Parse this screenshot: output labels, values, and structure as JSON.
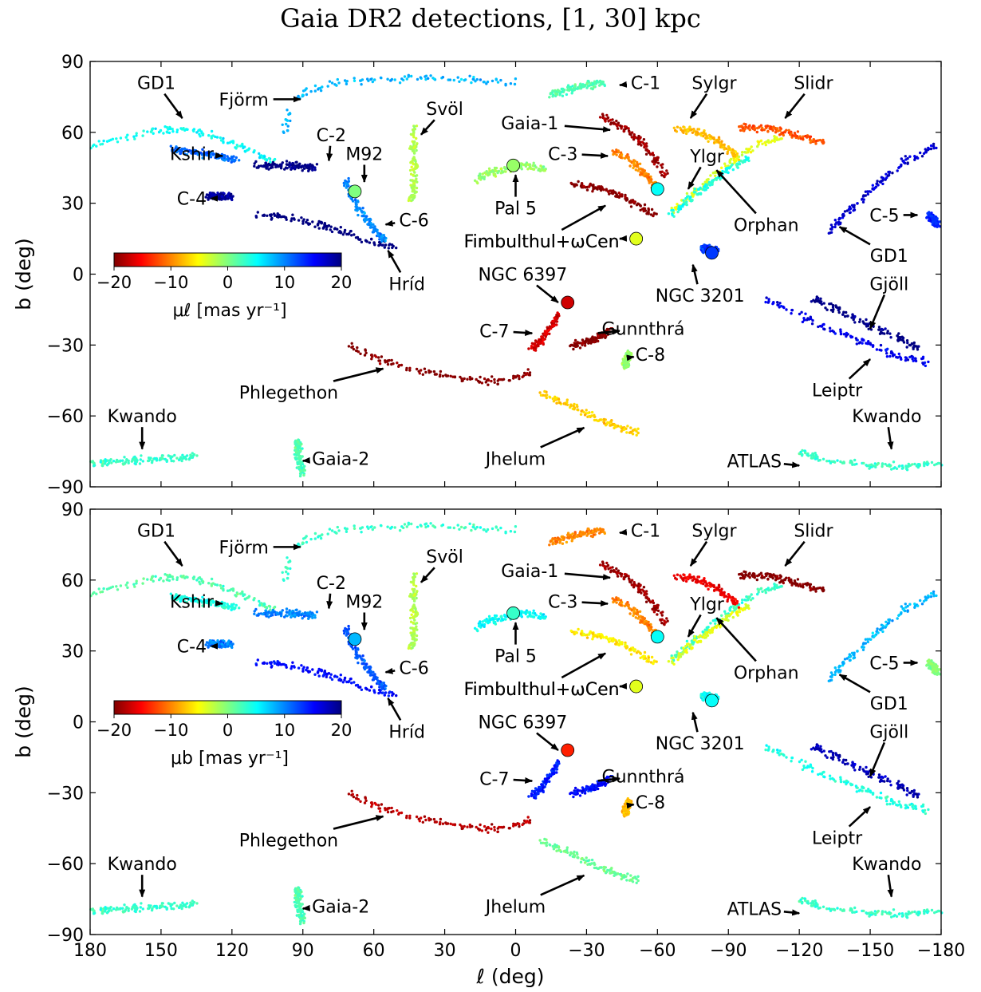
{
  "chart_data": {
    "type": "scatter",
    "title": "Gaia DR2 detections, [1, 30] kpc",
    "xlabel": "ℓ (deg)",
    "ylabel": "b (deg)",
    "xlim": [
      180,
      -180
    ],
    "ylim": [
      -90,
      90
    ],
    "xticks": [
      "180",
      "150",
      "120",
      "90",
      "60",
      "30",
      "0",
      "−30",
      "−60",
      "−90",
      "−120",
      "−150",
      "−180"
    ],
    "yticks": [
      "−90",
      "−60",
      "−30",
      "0",
      "30",
      "60",
      "90"
    ],
    "colormap": [
      "#800000",
      "#ff0000",
      "#ffff00",
      "#00ffff",
      "#0000ff",
      "#000080"
    ],
    "panels": [
      {
        "colorbar_label": "μℓ  [mas yr⁻¹]",
        "colorbar_range": [
          -20,
          20
        ],
        "colorbar_ticks": [
          "−20",
          "−10",
          "0",
          "10",
          "20"
        ]
      },
      {
        "colorbar_label": "μb  [mas yr⁻¹]",
        "colorbar_range": [
          -20,
          20
        ],
        "colorbar_ticks": [
          "−20",
          "−10",
          "0",
          "10",
          "20"
        ]
      }
    ],
    "streams": [
      {
        "name": "GD1 (east)",
        "pts": [
          [
            180,
            54
          ],
          [
            165,
            58
          ],
          [
            150,
            61
          ],
          [
            140,
            61
          ],
          [
            130,
            59
          ],
          [
            120,
            55
          ],
          [
            110,
            51
          ],
          [
            100,
            47
          ]
        ],
        "color": [
          5,
          2
        ]
      },
      {
        "name": "GD1 (west)",
        "pts": [
          [
            -180,
            55
          ],
          [
            -165,
            48
          ],
          [
            -155,
            40
          ],
          [
            -148,
            33
          ],
          [
            -140,
            26
          ],
          [
            -133,
            18
          ]
        ],
        "color": [
          17,
          8
        ]
      },
      {
        "name": "Fjörm",
        "pts": [
          [
            98,
            60
          ],
          [
            95,
            72
          ],
          [
            88,
            78
          ],
          [
            75,
            81
          ],
          [
            60,
            82
          ],
          [
            45,
            83
          ],
          [
            30,
            83
          ],
          [
            15,
            82
          ],
          [
            0,
            81
          ]
        ],
        "color": [
          8,
          3
        ]
      },
      {
        "name": "Kshir",
        "pts": [
          [
            145,
            53
          ],
          [
            130,
            51
          ],
          [
            118,
            48
          ]
        ],
        "color": [
          11,
          4
        ]
      },
      {
        "name": "C-4",
        "pts": [
          [
            130,
            33
          ],
          [
            120,
            33
          ]
        ],
        "color": [
          19,
          10
        ]
      },
      {
        "name": "C-2",
        "pts": [
          [
            110,
            46
          ],
          [
            95,
            46
          ],
          [
            85,
            45
          ]
        ],
        "color": [
          20,
          10
        ]
      },
      {
        "name": "Hríd",
        "pts": [
          [
            110,
            25
          ],
          [
            95,
            24
          ],
          [
            80,
            20
          ],
          [
            65,
            15
          ],
          [
            50,
            11
          ]
        ],
        "color": [
          21,
          15
        ]
      },
      {
        "name": "C-6",
        "pts": [
          [
            72,
            40
          ],
          [
            68,
            30
          ],
          [
            62,
            22
          ],
          [
            56,
            14
          ]
        ],
        "color": [
          10,
          12
        ]
      },
      {
        "name": "Svöl",
        "pts": [
          [
            43,
            63
          ],
          [
            43,
            50
          ],
          [
            43,
            38
          ],
          [
            44,
            31
          ]
        ],
        "color": [
          -2,
          -2
        ]
      },
      {
        "name": "Pal 5",
        "pts": [
          [
            17,
            40
          ],
          [
            10,
            43
          ],
          [
            2,
            45
          ],
          [
            -5,
            46
          ],
          [
            -13,
            44
          ]
        ],
        "color": [
          -1,
          5
        ]
      },
      {
        "name": "C-1",
        "pts": [
          [
            -15,
            76
          ],
          [
            -25,
            79
          ],
          [
            -38,
            81
          ]
        ],
        "color": [
          2,
          -10
        ]
      },
      {
        "name": "Gaia-1",
        "pts": [
          [
            -36,
            67
          ],
          [
            -45,
            62
          ],
          [
            -52,
            57
          ],
          [
            -58,
            50
          ],
          [
            -63,
            42
          ]
        ],
        "color": [
          -19,
          -19
        ]
      },
      {
        "name": "C-3",
        "pts": [
          [
            -42,
            52
          ],
          [
            -50,
            47
          ],
          [
            -56,
            41
          ],
          [
            -61,
            35
          ]
        ],
        "color": [
          -10,
          -10
        ]
      },
      {
        "name": "Fimbulthul",
        "pts": [
          [
            -24,
            38
          ],
          [
            -32,
            37
          ],
          [
            -38,
            36
          ],
          [
            -45,
            33
          ],
          [
            -52,
            29
          ],
          [
            -59,
            25
          ]
        ],
        "color": [
          -20,
          -6
        ]
      },
      {
        "name": "Orphan",
        "pts": [
          [
            -66,
            26
          ],
          [
            -74,
            33
          ],
          [
            -82,
            40
          ],
          [
            -92,
            48
          ],
          [
            -102,
            55
          ],
          [
            -112,
            58
          ]
        ],
        "color": [
          -4,
          3
        ]
      },
      {
        "name": "Ylgr",
        "pts": [
          [
            -66,
            25
          ],
          [
            -74,
            32
          ],
          [
            -82,
            38
          ],
          [
            -90,
            44
          ],
          [
            -98,
            49
          ]
        ],
        "color": [
          4,
          -4
        ]
      },
      {
        "name": "Sylgr",
        "pts": [
          [
            -68,
            62
          ],
          [
            -78,
            60
          ],
          [
            -86,
            56
          ],
          [
            -94,
            50
          ]
        ],
        "color": [
          -8,
          -16
        ]
      },
      {
        "name": "Slidr",
        "pts": [
          [
            -95,
            62
          ],
          [
            -107,
            62
          ],
          [
            -118,
            59
          ],
          [
            -130,
            56
          ]
        ],
        "color": [
          -12,
          -20
        ]
      },
      {
        "name": "C-5",
        "pts": [
          [
            -175,
            25
          ],
          [
            -178,
            21
          ]
        ],
        "color": [
          14,
          0
        ]
      },
      {
        "name": "NGC 3201",
        "pts": [
          [
            -79,
            11
          ],
          [
            -85,
            10
          ]
        ],
        "color": [
          13,
          5
        ]
      },
      {
        "name": "NGC 6397",
        "pts": [
          [
            -18,
            -17
          ],
          [
            -15,
            -22
          ],
          [
            -11,
            -28
          ],
          [
            -7,
            -31
          ]
        ],
        "color": [
          -17,
          14
        ]
      },
      {
        "name": "Gunnthrá",
        "pts": [
          [
            -24,
            -30
          ],
          [
            -33,
            -28
          ],
          [
            -40,
            -24
          ]
        ],
        "color": [
          -20,
          15
        ]
      },
      {
        "name": "C-8",
        "pts": [
          [
            -48,
            -34
          ],
          [
            -46,
            -39
          ]
        ],
        "color": [
          -1,
          -8
        ]
      },
      {
        "name": "Phlegethon",
        "pts": [
          [
            70,
            -30
          ],
          [
            58,
            -36
          ],
          [
            45,
            -40
          ],
          [
            30,
            -43
          ],
          [
            15,
            -45
          ],
          [
            3,
            -45
          ],
          [
            -8,
            -41
          ]
        ],
        "color": [
          -20,
          -18
        ]
      },
      {
        "name": "Gjöll",
        "pts": [
          [
            -125,
            -10
          ],
          [
            -140,
            -17
          ],
          [
            -155,
            -24
          ],
          [
            -170,
            -31
          ]
        ],
        "color": [
          20,
          18
        ]
      },
      {
        "name": "Leiptr",
        "pts": [
          [
            -105,
            -10
          ],
          [
            -125,
            -20
          ],
          [
            -145,
            -28
          ],
          [
            -160,
            -34
          ],
          [
            -175,
            -37
          ]
        ],
        "color": [
          16,
          4
        ]
      },
      {
        "name": "Jhelum",
        "pts": [
          [
            -10,
            -50
          ],
          [
            -22,
            -55
          ],
          [
            -32,
            -60
          ],
          [
            -42,
            -64
          ],
          [
            -52,
            -67
          ]
        ],
        "color": [
          -7,
          1
        ]
      },
      {
        "name": "Gaia-2",
        "pts": [
          [
            92,
            -70
          ],
          [
            92,
            -77
          ],
          [
            90,
            -85
          ]
        ],
        "color": [
          2,
          2
        ]
      },
      {
        "name": "Kwando (east)",
        "pts": [
          [
            180,
            -80
          ],
          [
            165,
            -79
          ],
          [
            150,
            -78
          ],
          [
            135,
            -77
          ]
        ],
        "color": [
          3,
          3
        ]
      },
      {
        "name": "Kwando (west)",
        "pts": [
          [
            -180,
            -80
          ],
          [
            -165,
            -81
          ],
          [
            -150,
            -81
          ],
          [
            -130,
            -78
          ],
          [
            -120,
            -75
          ]
        ],
        "color": [
          3,
          3
        ]
      }
    ],
    "clusters": [
      {
        "name": "M92",
        "l": 68,
        "b": 35,
        "color": [
          0,
          8
        ]
      },
      {
        "name": "Pal 5",
        "l": 1,
        "b": 46,
        "color": [
          -1,
          3
        ]
      },
      {
        "name": "ωCen",
        "l": -51,
        "b": 15,
        "color": [
          -4,
          -4
        ]
      },
      {
        "name": "C-3",
        "l": -60,
        "b": 36,
        "color": [
          5,
          5
        ]
      },
      {
        "name": "NGC 6397",
        "l": -22,
        "b": -12,
        "color": [
          -17,
          -14
        ]
      },
      {
        "name": "NGC 3201",
        "l": -83,
        "b": 9,
        "color": [
          13,
          5
        ]
      }
    ],
    "annotations": [
      {
        "label": "GD1",
        "tx": 152,
        "ty": 81,
        "ax": 141,
        "ay": 66
      },
      {
        "label": "Fjörm",
        "tx": 115,
        "ty": 74,
        "ax": 91,
        "ay": 74
      },
      {
        "label": "Kshir",
        "tx": 137,
        "ty": 51,
        "ax": 124,
        "ay": 50
      },
      {
        "label": "C-2",
        "tx": 78,
        "ty": 59,
        "ax": 79,
        "ay": 48
      },
      {
        "label": "M92",
        "tx": 64,
        "ty": 51,
        "ax": 64,
        "ay": 39
      },
      {
        "label": "C-4",
        "tx": 137,
        "ty": 32,
        "ax": 129,
        "ay": 32
      },
      {
        "label": "C-6",
        "tx": 43,
        "ty": 23,
        "ax": 55,
        "ay": 21
      },
      {
        "label": "Hríd",
        "tx": 46,
        "ty": -4,
        "ax": 54,
        "ay": 10
      },
      {
        "label": "Svöl",
        "tx": 30,
        "ty": 70,
        "ax": 40,
        "ay": 59
      },
      {
        "label": "Pal 5",
        "tx": 0,
        "ty": 28,
        "ax": 0,
        "ay": 42
      },
      {
        "label": "C-1",
        "tx": -55,
        "ty": 81,
        "ax": -44,
        "ay": 80
      },
      {
        "label": "Gaia-1",
        "tx": -6,
        "ty": 64,
        "ax": -40,
        "ay": 61
      },
      {
        "label": "C-3",
        "tx": -20,
        "ty": 51,
        "ax": -39,
        "ay": 50
      },
      {
        "label": "Sylgr",
        "tx": -84,
        "ty": 81,
        "ax": -74,
        "ay": 66
      },
      {
        "label": "Ylgr",
        "tx": -81,
        "ty": 50,
        "ax": -73,
        "ay": 36
      },
      {
        "label": "Slidr",
        "tx": -126,
        "ty": 81,
        "ax": -114,
        "ay": 66
      },
      {
        "label": "Orphan",
        "tx": -106,
        "ty": 21,
        "ax": -85,
        "ay": 44
      },
      {
        "label": "C-5",
        "tx": -156,
        "ty": 25,
        "ax": -170,
        "ay": 25
      },
      {
        "label": "GD1",
        "tx": -158,
        "ty": 8,
        "ax": -137,
        "ay": 20
      },
      {
        "label": "Fimbulthul+ωCen",
        "tx": -11,
        "ty": 14,
        "ax": -44,
        "ay": 15
      },
      {
        "label": "Fimbulthul+ωCen",
        "tx": -11,
        "ty": 14,
        "ax": -38,
        "ay": 29
      },
      {
        "label": "NGC 6397",
        "tx": -3,
        "ty": 0,
        "ax": -18,
        "ay": -12
      },
      {
        "label": "C-7",
        "tx": 9,
        "ty": -24,
        "ax": -7,
        "ay": -25
      },
      {
        "label": "NGC 3201",
        "tx": -78,
        "ty": -9,
        "ax": -75,
        "ay": 4
      },
      {
        "label": "Gunnthrá",
        "tx": -54,
        "ty": -23,
        "ax": -44,
        "ay": -24
      },
      {
        "label": "C-8",
        "tx": -57,
        "ty": -34,
        "ax": -50,
        "ay": -35
      },
      {
        "label": "Gjöll",
        "tx": -158,
        "ty": -4,
        "ax": -150,
        "ay": -23
      },
      {
        "label": "Leiptr",
        "tx": -136,
        "ty": -49,
        "ax": -150,
        "ay": -36
      },
      {
        "label": "Phlegethon",
        "tx": 96,
        "ty": -50,
        "ax": 56,
        "ay": -40
      },
      {
        "label": "Jhelum",
        "tx": 0,
        "ty": -78,
        "ax": -29,
        "ay": -65
      },
      {
        "label": "Gaia-2",
        "tx": 74,
        "ty": -78,
        "ax": 90,
        "ay": -79
      },
      {
        "label": "Kwando",
        "tx": 158,
        "ty": -60,
        "ax": 158,
        "ay": -74
      },
      {
        "label": "Kwando",
        "tx": -157,
        "ty": -60,
        "ax": -159,
        "ay": -74
      },
      {
        "label": "ATLAS",
        "tx": -101,
        "ty": -79,
        "ax": -120,
        "ay": -81
      }
    ]
  }
}
